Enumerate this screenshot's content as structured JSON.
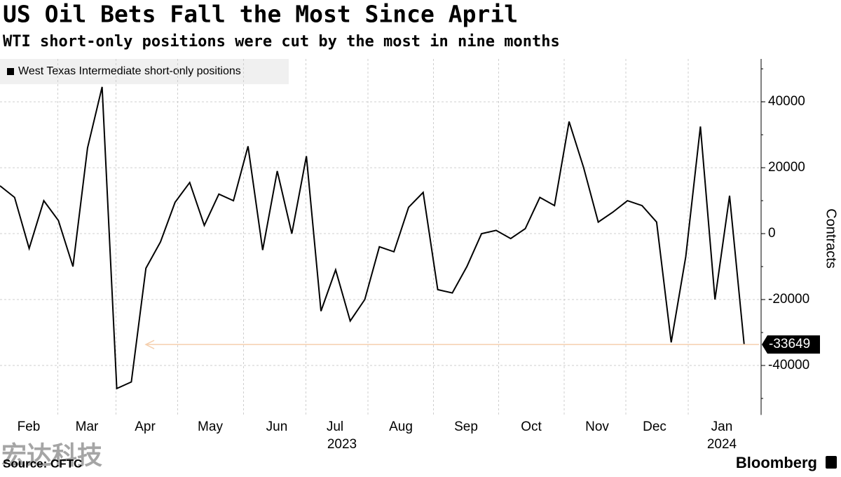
{
  "chart_data": {
    "type": "line",
    "title": "US Oil Bets Fall the Most Since April",
    "subtitle": "WTI short-only positions were cut by the most in nine months",
    "x_month_labels": [
      "Feb",
      "Mar",
      "Apr",
      "May",
      "Jun",
      "Jul",
      "Aug",
      "Sep",
      "Oct",
      "Nov",
      "Dec",
      "Jan"
    ],
    "x_year_labels": [
      "2023",
      "2024"
    ],
    "ylabel": "Contracts",
    "series": [
      {
        "name": "West Texas Intermediate short-only positions",
        "color": "#000000",
        "values": [
          14500,
          11000,
          -4500,
          10000,
          4000,
          -10000,
          26000,
          44500,
          -47000,
          -45000,
          -10500,
          -2500,
          9500,
          15500,
          2500,
          12000,
          10000,
          26500,
          -5000,
          19000,
          0,
          23500,
          -23500,
          -11000,
          -26500,
          -20000,
          -4000,
          -5500,
          8000,
          12500,
          -17000,
          -18000,
          -10000,
          0,
          1000,
          -1500,
          1500,
          11000,
          8500,
          34000,
          20000,
          3500,
          6500,
          10000,
          8500,
          3500,
          -33000,
          -7000,
          32500,
          -20000,
          11500,
          -33649
        ]
      }
    ],
    "last_value_label": "-33649",
    "ylim": [
      -55000,
      53000
    ],
    "yticks": [
      40000,
      20000,
      0,
      -20000,
      -40000
    ],
    "grid": true,
    "legend": "top-left",
    "source": "Source: CFTC",
    "brand": "Bloomberg",
    "watermark": "宏达科技"
  }
}
